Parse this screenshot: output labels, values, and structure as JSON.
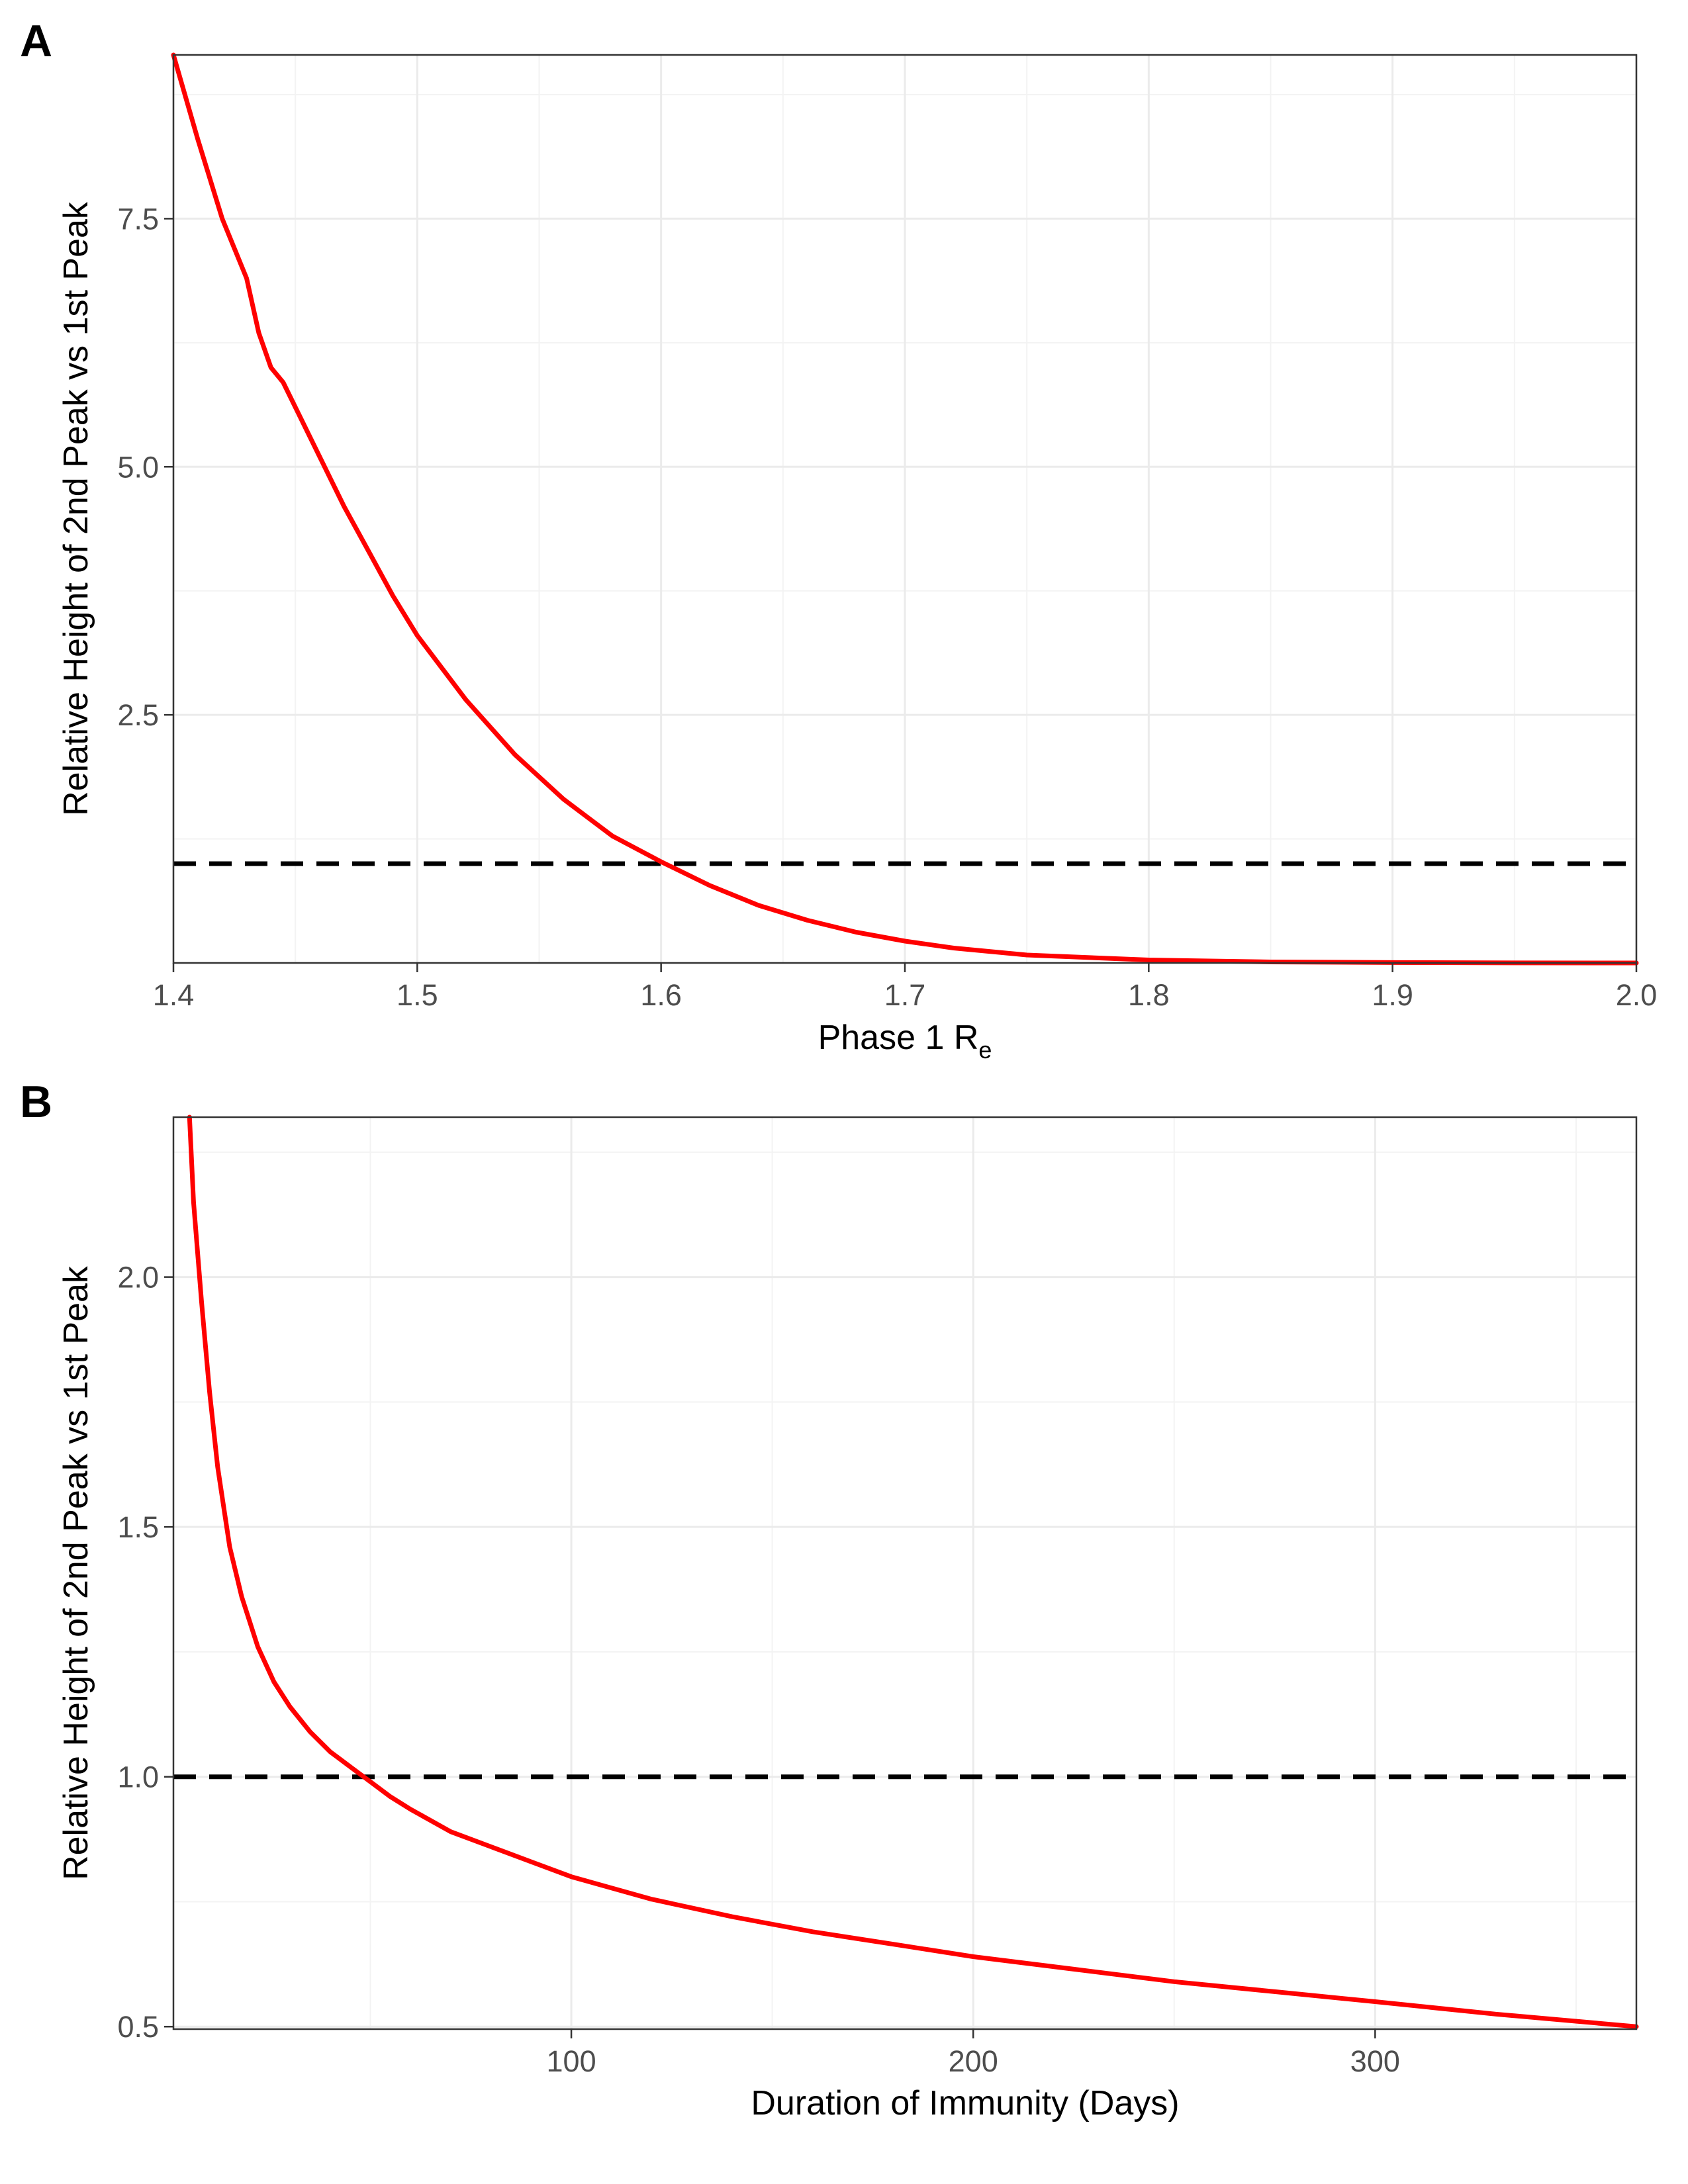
{
  "chart_data": [
    {
      "panel": "A",
      "type": "line",
      "xlabel": "Phase 1 R",
      "xlabel_subscript": "e",
      "ylabel": "Relative Height of 2nd Peak vs 1st Peak",
      "xlim": [
        1.4,
        2.0
      ],
      "ylim": [
        0,
        9.15
      ],
      "x_ticks": [
        1.4,
        1.5,
        1.6,
        1.7,
        1.8,
        1.9,
        2.0
      ],
      "x_tick_labels": [
        "1.4",
        "1.5",
        "1.6",
        "1.7",
        "1.8",
        "1.9",
        "2.0"
      ],
      "y_ticks": [
        2.5,
        5.0,
        7.5
      ],
      "y_tick_labels": [
        "2.5",
        "5.0",
        "7.5"
      ],
      "grid": true,
      "reference_line": {
        "y": 1.0,
        "style": "dashed",
        "color": "#000000"
      },
      "series": [
        {
          "color": "#ff0000",
          "x": [
            1.4,
            1.41,
            1.42,
            1.43,
            1.435,
            1.44,
            1.445,
            1.45,
            1.455,
            1.46,
            1.47,
            1.48,
            1.49,
            1.5,
            1.52,
            1.54,
            1.56,
            1.58,
            1.6,
            1.62,
            1.64,
            1.66,
            1.68,
            1.7,
            1.72,
            1.75,
            1.8,
            1.85,
            1.9,
            1.95,
            2.0
          ],
          "y": [
            9.15,
            8.3,
            7.5,
            6.9,
            6.35,
            6.0,
            5.85,
            5.6,
            5.35,
            5.1,
            4.6,
            4.15,
            3.7,
            3.3,
            2.65,
            2.1,
            1.65,
            1.28,
            1.02,
            0.78,
            0.58,
            0.43,
            0.31,
            0.22,
            0.15,
            0.08,
            0.03,
            0.01,
            0.004,
            0.001,
            0.0
          ]
        }
      ]
    },
    {
      "panel": "B",
      "type": "line",
      "xlabel": "Duration of Immunity (Days)",
      "ylabel": "Relative Height of 2nd Peak vs 1st Peak",
      "xlim": [
        1,
        365
      ],
      "ylim": [
        0.495,
        2.32
      ],
      "x_ticks": [
        100,
        200,
        300
      ],
      "x_tick_labels": [
        "100",
        "200",
        "300"
      ],
      "y_ticks": [
        0.5,
        1.0,
        1.5,
        2.0
      ],
      "y_tick_labels": [
        "0.5",
        "1.0",
        "1.5",
        "2.0"
      ],
      "grid": true,
      "reference_line": {
        "y": 1.0,
        "style": "dashed",
        "color": "#000000"
      },
      "series": [
        {
          "color": "#ff0000",
          "x": [
            5,
            6,
            8,
            10,
            12,
            15,
            18,
            22,
            26,
            30,
            35,
            40,
            45,
            50,
            55,
            60,
            70,
            80,
            90,
            100,
            120,
            140,
            160,
            180,
            200,
            225,
            250,
            275,
            300,
            330,
            365
          ],
          "y": [
            2.32,
            2.15,
            1.95,
            1.77,
            1.62,
            1.46,
            1.36,
            1.26,
            1.19,
            1.14,
            1.09,
            1.05,
            1.02,
            0.99,
            0.96,
            0.935,
            0.89,
            0.86,
            0.83,
            0.8,
            0.755,
            0.72,
            0.69,
            0.665,
            0.64,
            0.615,
            0.59,
            0.57,
            0.55,
            0.525,
            0.5
          ]
        }
      ]
    }
  ]
}
